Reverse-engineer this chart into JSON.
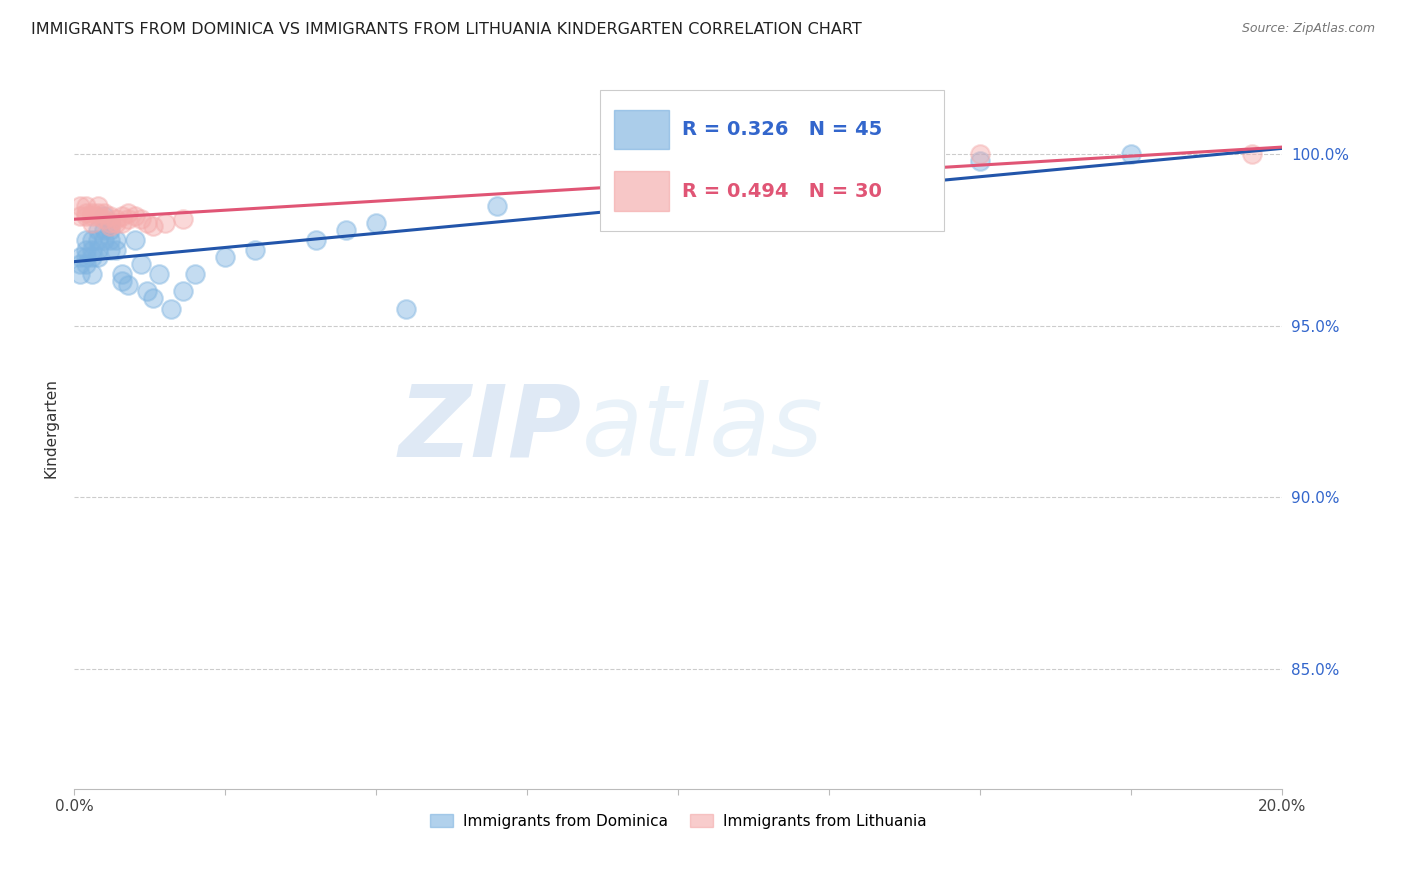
{
  "title": "IMMIGRANTS FROM DOMINICA VS IMMIGRANTS FROM LITHUANIA KINDERGARTEN CORRELATION CHART",
  "source": "Source: ZipAtlas.com",
  "ylabel": "Kindergarten",
  "xmin": 0.0,
  "xmax": 0.2,
  "ymin": 0.815,
  "ymax": 1.025,
  "ytick_vals": [
    0.85,
    0.9,
    0.95,
    1.0
  ],
  "ytick_labels": [
    "85.0%",
    "90.0%",
    "95.0%",
    "100.0%"
  ],
  "legend_r1": "R = 0.326",
  "legend_n1": "N = 45",
  "legend_r2": "R = 0.494",
  "legend_n2": "N = 30",
  "color_dominica": "#7EB3E0",
  "color_lithuania": "#F4AAAA",
  "trendline_dominica": "#2255AA",
  "trendline_lithuania": "#E05575",
  "watermark_zip": "ZIP",
  "watermark_atlas": "atlas",
  "dominica_x": [
    0.001,
    0.001,
    0.001,
    0.002,
    0.002,
    0.002,
    0.002,
    0.003,
    0.003,
    0.003,
    0.003,
    0.004,
    0.004,
    0.004,
    0.004,
    0.005,
    0.005,
    0.005,
    0.006,
    0.006,
    0.006,
    0.006,
    0.007,
    0.007,
    0.008,
    0.008,
    0.009,
    0.01,
    0.011,
    0.012,
    0.013,
    0.014,
    0.016,
    0.018,
    0.02,
    0.025,
    0.03,
    0.04,
    0.045,
    0.05,
    0.055,
    0.07,
    0.09,
    0.15,
    0.175
  ],
  "dominica_y": [
    0.97,
    0.968,
    0.965,
    0.972,
    0.975,
    0.97,
    0.968,
    0.975,
    0.972,
    0.97,
    0.965,
    0.978,
    0.975,
    0.972,
    0.97,
    0.982,
    0.978,
    0.975,
    0.98,
    0.978,
    0.975,
    0.972,
    0.975,
    0.972,
    0.965,
    0.963,
    0.962,
    0.975,
    0.968,
    0.96,
    0.958,
    0.965,
    0.955,
    0.96,
    0.965,
    0.97,
    0.972,
    0.975,
    0.978,
    0.98,
    0.955,
    0.985,
    0.988,
    0.998,
    1.0
  ],
  "lithuania_x": [
    0.001,
    0.001,
    0.002,
    0.002,
    0.002,
    0.003,
    0.003,
    0.003,
    0.004,
    0.004,
    0.004,
    0.005,
    0.005,
    0.006,
    0.006,
    0.006,
    0.007,
    0.007,
    0.008,
    0.008,
    0.009,
    0.009,
    0.01,
    0.011,
    0.012,
    0.013,
    0.015,
    0.018,
    0.15,
    0.195
  ],
  "lithuania_y": [
    0.985,
    0.982,
    0.985,
    0.983,
    0.982,
    0.983,
    0.982,
    0.98,
    0.985,
    0.983,
    0.982,
    0.983,
    0.981,
    0.982,
    0.98,
    0.979,
    0.981,
    0.98,
    0.982,
    0.98,
    0.983,
    0.981,
    0.982,
    0.981,
    0.98,
    0.979,
    0.98,
    0.981,
    1.0,
    1.0
  ]
}
